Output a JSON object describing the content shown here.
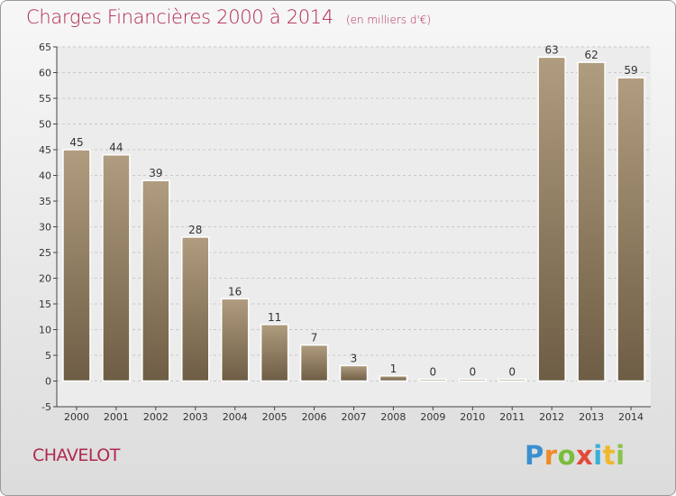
{
  "chart_data": {
    "type": "bar",
    "title": "Charges Financières 2000 à 2014",
    "subtitle": "(en milliers d'€)",
    "categories": [
      "2000",
      "2001",
      "2002",
      "2003",
      "2004",
      "2005",
      "2006",
      "2007",
      "2008",
      "2009",
      "2010",
      "2011",
      "2012",
      "2013",
      "2014"
    ],
    "values": [
      45,
      44,
      39,
      28,
      16,
      11,
      7,
      3,
      1,
      0,
      0,
      0,
      63,
      62,
      59
    ],
    "ylim": [
      -5,
      65
    ],
    "yticks": [
      -5,
      0,
      5,
      10,
      15,
      20,
      25,
      30,
      35,
      40,
      45,
      50,
      55,
      60,
      65
    ],
    "grid": true,
    "bar_color_light": "#b09c7e",
    "bar_color_dark": "#6e5d45"
  },
  "footer": {
    "commune": "CHAVELOT",
    "logo_letters": [
      "P",
      "r",
      "o",
      "x",
      "i",
      "t",
      "i"
    ]
  },
  "colors": {
    "title": "#b0284f",
    "grid": "#c8c8c8"
  }
}
